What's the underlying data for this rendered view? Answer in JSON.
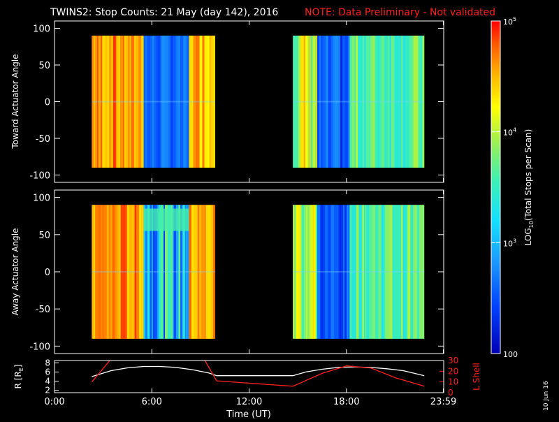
{
  "title": {
    "main": "TWINS2: Stop Counts: 21 May (day 142), 2016",
    "note": "NOTE: Data Preliminary - Not validated"
  },
  "colors": {
    "background": "#000000",
    "axes": "#ffffff",
    "note": "#ff2020",
    "lshell": "#ff2020",
    "radius": "#ffffff"
  },
  "side_text": "10 Jun 16",
  "colorbar": {
    "label": "LOG10(Total Stops per Scan)",
    "scale": "log",
    "range": [
      100,
      100000
    ],
    "ticks": [
      {
        "value": 100,
        "label": "100"
      },
      {
        "value": 1000,
        "label": "10^3"
      },
      {
        "value": 10000,
        "label": "10^4"
      },
      {
        "value": 100000,
        "label": "10^5"
      }
    ]
  },
  "chart_data": [
    {
      "type": "heatmap",
      "ylabel": "Toward Actuator Angle",
      "xlim": [
        0,
        24
      ],
      "ylim": [
        -110,
        110
      ],
      "yticks": [
        -100,
        -50,
        0,
        50,
        100
      ],
      "data_angle_range": [
        -90,
        90
      ],
      "segments": [
        {
          "time_range": [
            2.3,
            4.2
          ],
          "description": "high",
          "approx_log10_counts": [
            4.3,
            4.9
          ]
        },
        {
          "time_range": [
            4.2,
            5.5
          ],
          "description": "high",
          "approx_log10_counts": [
            4.3,
            4.8
          ]
        },
        {
          "time_range": [
            5.5,
            8.3
          ],
          "description": "low",
          "approx_log10_counts": [
            2.4,
            2.8
          ]
        },
        {
          "time_range": [
            8.3,
            9.9
          ],
          "description": "high",
          "approx_log10_counts": [
            4.2,
            4.8
          ]
        },
        {
          "time_range": [
            14.7,
            16.2
          ],
          "description": "medium-high",
          "approx_log10_counts": [
            3.5,
            4.6
          ]
        },
        {
          "time_range": [
            16.2,
            18.2
          ],
          "description": "low",
          "approx_log10_counts": [
            2.2,
            2.8
          ]
        },
        {
          "time_range": [
            18.2,
            22.8
          ],
          "description": "medium",
          "approx_log10_counts": [
            3.3,
            4.0
          ]
        }
      ]
    },
    {
      "type": "heatmap",
      "ylabel": "Away Actuator Angle",
      "xlim": [
        0,
        24
      ],
      "ylim": [
        -110,
        110
      ],
      "yticks": [
        -100,
        -50,
        0,
        50,
        100
      ],
      "data_angle_range": [
        -90,
        90
      ],
      "segments": [
        {
          "time_range": [
            2.3,
            5.5
          ],
          "description": "high",
          "approx_log10_counts": [
            4.3,
            4.9
          ]
        },
        {
          "time_range": [
            5.5,
            8.3
          ],
          "description": "low, enhanced near +70",
          "approx_log10_counts": [
            2.4,
            3.8
          ]
        },
        {
          "time_range": [
            8.3,
            9.9
          ],
          "description": "high",
          "approx_log10_counts": [
            4.2,
            4.8
          ]
        },
        {
          "time_range": [
            14.7,
            16.2
          ],
          "description": "medium-high",
          "approx_log10_counts": [
            3.5,
            4.6
          ]
        },
        {
          "time_range": [
            16.2,
            18.2
          ],
          "description": "low",
          "approx_log10_counts": [
            2.2,
            2.8
          ]
        },
        {
          "time_range": [
            18.2,
            22.8
          ],
          "description": "medium",
          "approx_log10_counts": [
            3.3,
            4.0
          ]
        }
      ]
    },
    {
      "type": "line",
      "ylabel_left": "R [RE]",
      "ylabel_right": "L Shell",
      "xlabel": "Time (UT)",
      "xlim": [
        0,
        24
      ],
      "xticks": [
        {
          "value": 0,
          "label": "0:00"
        },
        {
          "value": 6,
          "label": "6:00"
        },
        {
          "value": 12,
          "label": "12:00"
        },
        {
          "value": 18,
          "label": "18:00"
        },
        {
          "value": 23.98,
          "label": "23:59"
        }
      ],
      "ylim_left": [
        1.5,
        8.5
      ],
      "yticks_left": [
        2,
        4,
        6,
        8
      ],
      "ylim_right": [
        0,
        30
      ],
      "yticks_right": [
        0,
        10,
        20,
        30
      ],
      "series": [
        {
          "name": "R",
          "axis": "left",
          "x": [
            2.3,
            3.5,
            4.5,
            5.5,
            6.5,
            7.5,
            8.5,
            9.5,
            10.0,
            14.7,
            15.5,
            16.5,
            17.5,
            18.5,
            19.5,
            20.5,
            21.5,
            22.8
          ],
          "y": [
            5.0,
            6.3,
            6.9,
            7.2,
            7.2,
            7.0,
            6.5,
            5.8,
            5.2,
            5.2,
            6.0,
            6.6,
            7.0,
            7.1,
            7.0,
            6.7,
            6.3,
            5.2
          ]
        },
        {
          "name": "L Shell",
          "axis": "right",
          "x": [
            2.3,
            3.3,
            3.5,
            9.2,
            10.0,
            14.7,
            16.5,
            18.0,
            19.5,
            21.0,
            22.8
          ],
          "y": [
            10.0,
            28.0,
            32.0,
            32.0,
            11.0,
            6.0,
            18.0,
            25.0,
            23.0,
            14.0,
            6.0
          ]
        }
      ]
    }
  ]
}
